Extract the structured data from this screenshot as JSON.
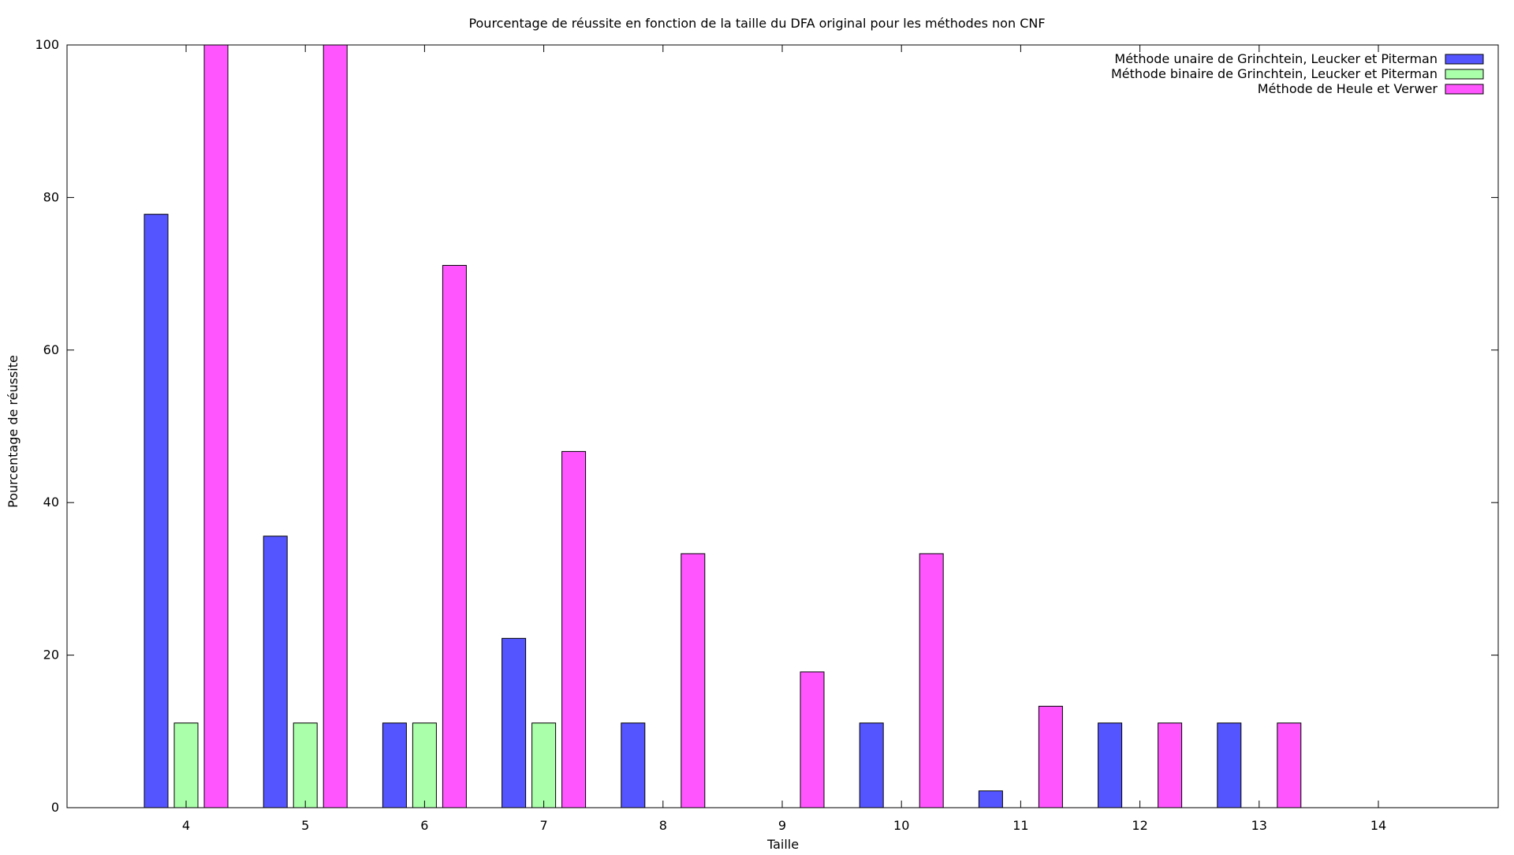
{
  "chart_data": {
    "type": "bar",
    "title": "Pourcentage de réussite en fonction de la taille du DFA original pour les méthodes non CNF",
    "xlabel": "Taille",
    "ylabel": "Pourcentage de réussite",
    "categories": [
      "4",
      "5",
      "6",
      "7",
      "8",
      "9",
      "10",
      "11",
      "12",
      "13",
      "14"
    ],
    "ylim": [
      0,
      100
    ],
    "yticks": [
      0,
      20,
      40,
      60,
      80,
      100
    ],
    "grid": false,
    "legend_position": "top-right",
    "series": [
      {
        "name": "Méthode unaire de Grinchtein, Leucker et Piterman",
        "color": "#5555ff",
        "values": [
          77.8,
          35.6,
          11.1,
          22.2,
          11.1,
          0,
          11.1,
          2.2,
          11.1,
          11.1,
          0
        ]
      },
      {
        "name": "Méthode binaire de Grinchtein, Leucker et Piterman",
        "color": "#aaffaa",
        "values": [
          11.1,
          11.1,
          11.1,
          11.1,
          0,
          0,
          0,
          0,
          0,
          0,
          0
        ]
      },
      {
        "name": "Méthode de Heule et Verwer",
        "color": "#ff55ff",
        "values": [
          100,
          100,
          71.1,
          46.7,
          33.3,
          17.8,
          33.3,
          13.3,
          11.1,
          11.1,
          0
        ]
      }
    ]
  }
}
